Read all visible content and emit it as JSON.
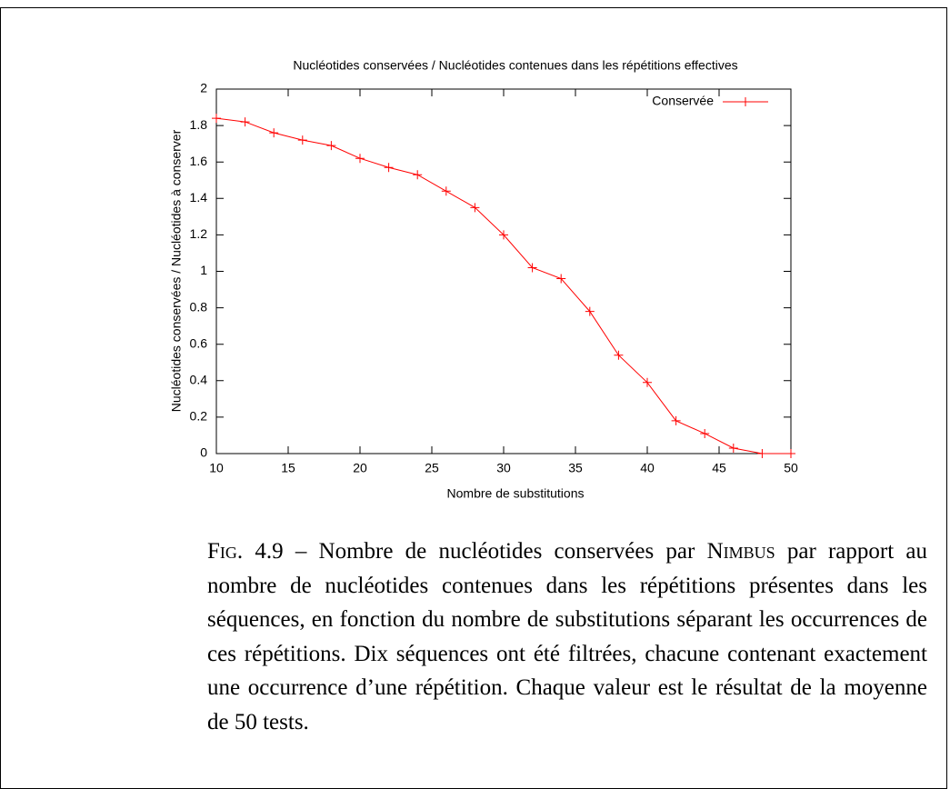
{
  "chart_data": {
    "type": "line",
    "title": "Nucléotides conservées / Nucléotides contenues dans les répétitions effectives",
    "xlabel": "Nombre de substitutions",
    "ylabel": "Nucléotides conservées / Nucléotides à conserver",
    "x": [
      10,
      12,
      14,
      16,
      18,
      20,
      22,
      24,
      26,
      28,
      30,
      32,
      34,
      36,
      38,
      40,
      42,
      44,
      46,
      48,
      50
    ],
    "series": [
      {
        "name": "Conservée",
        "color": "#ff0000",
        "values": [
          1.84,
          1.82,
          1.76,
          1.72,
          1.69,
          1.62,
          1.57,
          1.53,
          1.44,
          1.35,
          1.2,
          1.02,
          0.96,
          0.78,
          0.54,
          0.39,
          0.18,
          0.11,
          0.03,
          0,
          0
        ]
      }
    ],
    "xlim": [
      10,
      50
    ],
    "xticks": [
      10,
      15,
      20,
      25,
      30,
      35,
      40,
      45,
      50
    ],
    "ylim": [
      0,
      2
    ],
    "yticks": [
      0,
      0.2,
      0.4,
      0.6,
      0.8,
      1,
      1.2,
      1.4,
      1.6,
      1.8,
      2
    ],
    "grid": false,
    "legend": "top-right"
  },
  "caption": {
    "label": "Fig. 4.9",
    "text_before": " – Nombre de nucléotides conservées par ",
    "name": "Nimbus",
    "text_after": " par rapport au nombre de nucléotides contenues dans les répétitions présentes dans les séquences, en fonction du nombre de substitutions séparant les occurrences de ces répétitions. Dix séquences ont été filtrées, chacune contenant exactement une occurrence d’une répétition. Chaque valeur est le résultat de la moyenne de 50 tests."
  }
}
